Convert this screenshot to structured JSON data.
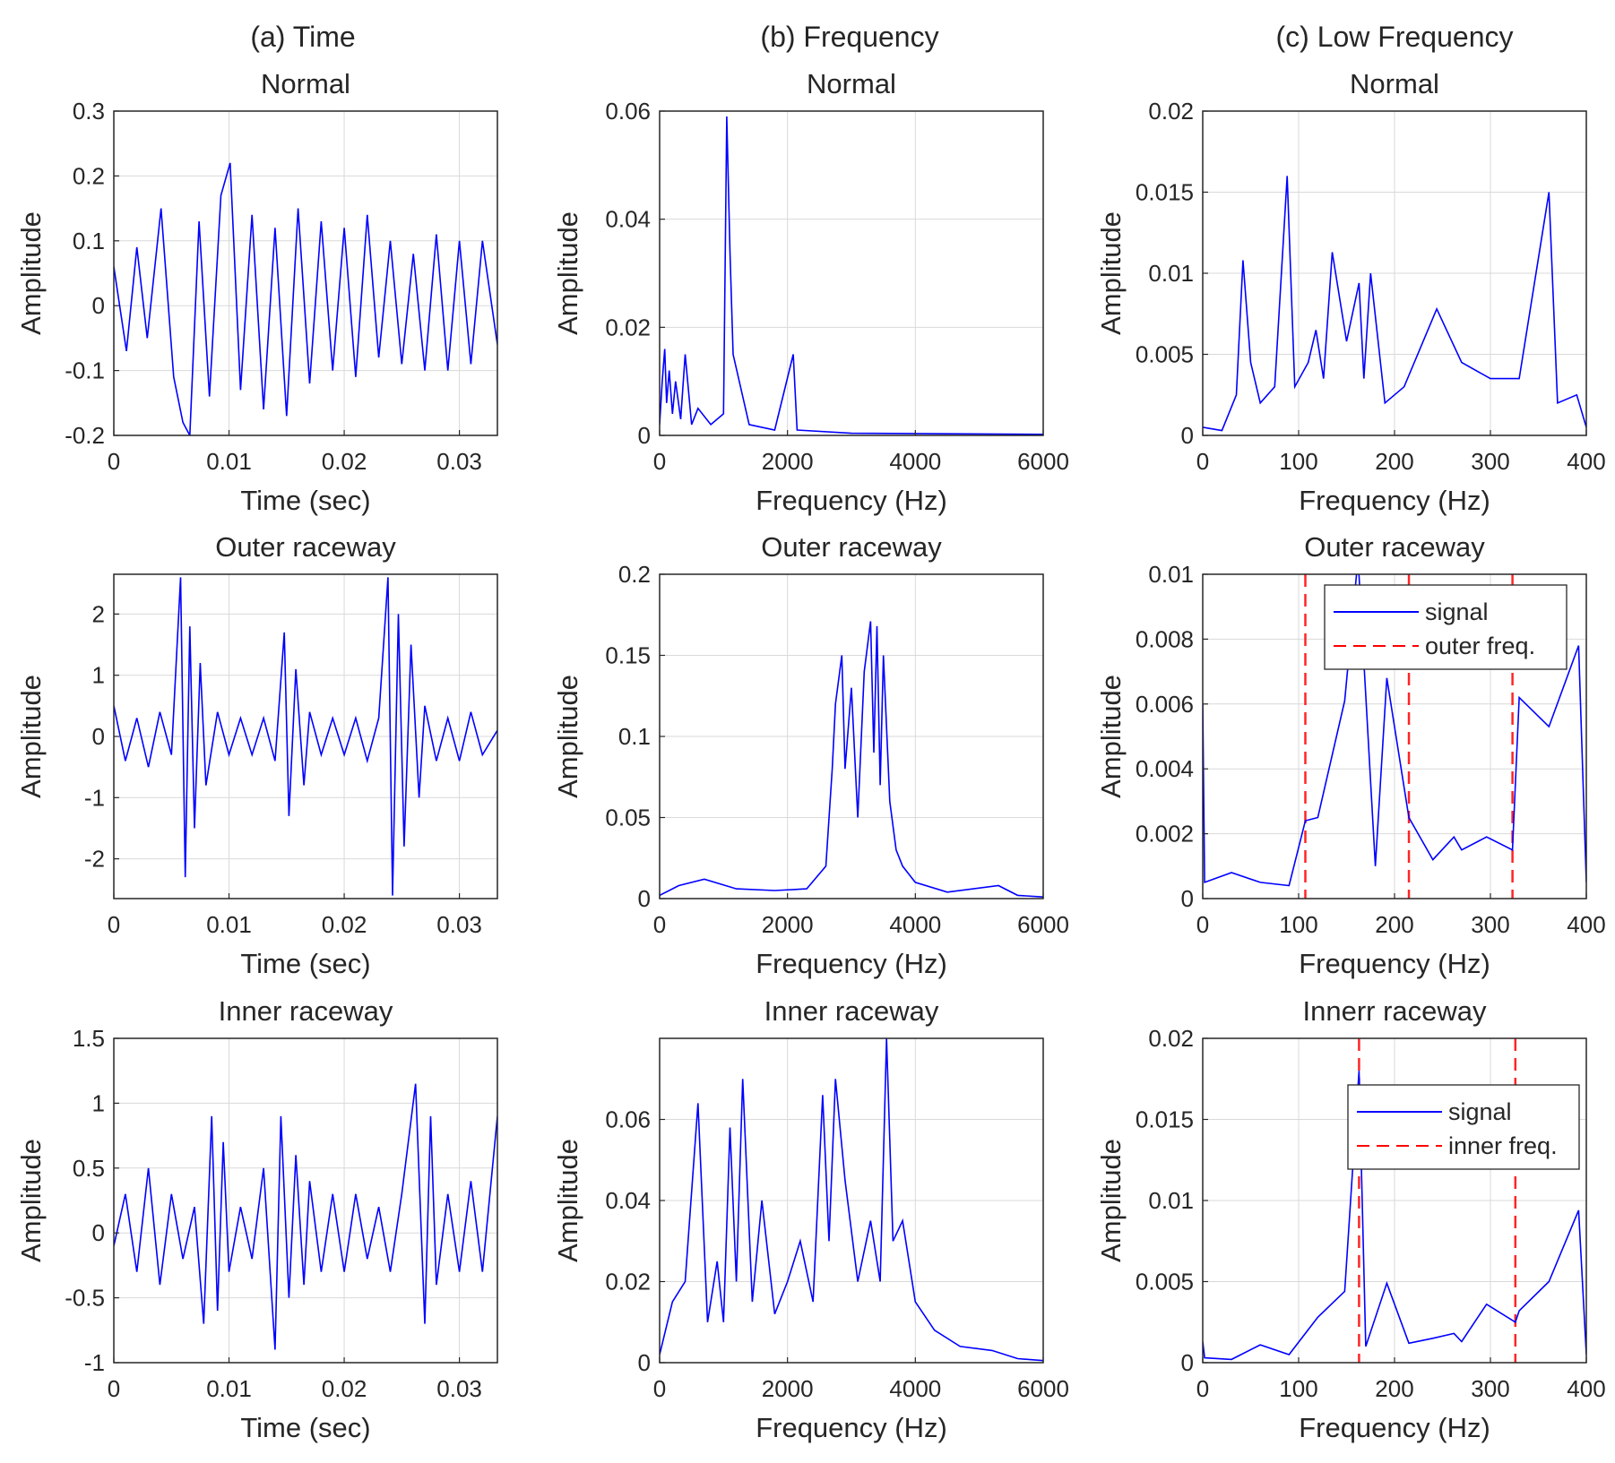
{
  "figure": {
    "column_titles": [
      "(a) Time",
      "(b) Frequency",
      "(c) Low Frequency"
    ]
  },
  "colors": {
    "signal": "#0000ff",
    "marker": "#ff0000",
    "grid": "#d9d9d9",
    "axes": "#262626"
  },
  "chart_data": [
    {
      "id": "time-normal",
      "type": "line",
      "title": "Normal",
      "xlabel": "Time (sec)",
      "ylabel": "Amplitude",
      "xlim": [
        0,
        0.0333
      ],
      "ylim": [
        -0.2,
        0.3
      ],
      "xticks": [
        0,
        0.01,
        0.02,
        0.03
      ],
      "xticklabels": [
        "0",
        "0.01",
        "0.02",
        "0.03"
      ],
      "yticks": [
        -0.2,
        -0.1,
        0,
        0.1,
        0.2,
        0.3
      ],
      "yticklabels": [
        "-0.2",
        "-0.1",
        "0",
        "0.1",
        "0.2",
        "0.3"
      ],
      "grid": true,
      "series": [
        {
          "x": [
            0,
            0.0011,
            0.002,
            0.0029,
            0.0041,
            0.0052,
            0.006,
            0.0066,
            0.0074,
            0.0083,
            0.0093,
            0.0101,
            0.011,
            0.012,
            0.013,
            0.014,
            0.015,
            0.016,
            0.017,
            0.018,
            0.019,
            0.02,
            0.021,
            0.022,
            0.023,
            0.024,
            0.025,
            0.026,
            0.027,
            0.028,
            0.029,
            0.03,
            0.031,
            0.032,
            0.0333
          ],
          "y": [
            0.06,
            -0.07,
            0.09,
            -0.05,
            0.15,
            -0.11,
            -0.18,
            -0.2,
            0.13,
            -0.14,
            0.17,
            0.22,
            -0.13,
            0.14,
            -0.16,
            0.12,
            -0.17,
            0.15,
            -0.12,
            0.13,
            -0.1,
            0.12,
            -0.11,
            0.14,
            -0.08,
            0.1,
            -0.09,
            0.08,
            -0.1,
            0.11,
            -0.1,
            0.1,
            -0.09,
            0.1,
            -0.06
          ]
        }
      ]
    },
    {
      "id": "freq-normal",
      "type": "line",
      "title": "Normal",
      "xlabel": "Frequency (Hz)",
      "ylabel": "Amplitude",
      "xlim": [
        0,
        6000
      ],
      "ylim": [
        0,
        0.06
      ],
      "xticks": [
        0,
        2000,
        4000,
        6000
      ],
      "xticklabels": [
        "0",
        "2000",
        "4000",
        "6000"
      ],
      "yticks": [
        0,
        0.02,
        0.04,
        0.06
      ],
      "yticklabels": [
        "0",
        "0.02",
        "0.04",
        "0.06"
      ],
      "grid": true,
      "series": [
        {
          "x": [
            0,
            40,
            80,
            110,
            150,
            200,
            250,
            330,
            400,
            500,
            600,
            800,
            1000,
            1050,
            1100,
            1150,
            1400,
            1800,
            2090,
            2150,
            3000,
            4500,
            6000
          ],
          "y": [
            0.002,
            0.01,
            0.016,
            0.006,
            0.012,
            0.004,
            0.01,
            0.003,
            0.015,
            0.002,
            0.005,
            0.002,
            0.004,
            0.059,
            0.034,
            0.015,
            0.002,
            0.001,
            0.015,
            0.001,
            0.0004,
            0.0003,
            0.0002
          ]
        }
      ]
    },
    {
      "id": "low-normal",
      "type": "line",
      "title": "Normal",
      "xlabel": "Frequency (Hz)",
      "ylabel": "Amplitude",
      "xlim": [
        0,
        400
      ],
      "ylim": [
        0,
        0.02
      ],
      "xticks": [
        0,
        100,
        200,
        300,
        400
      ],
      "xticklabels": [
        "0",
        "100",
        "200",
        "300",
        "400"
      ],
      "yticks": [
        0,
        0.005,
        0.01,
        0.015,
        0.02
      ],
      "yticklabels": [
        "0",
        "0.005",
        "0.01",
        "0.015",
        "0.02"
      ],
      "grid": true,
      "series": [
        {
          "x": [
            0,
            20,
            35,
            42,
            50,
            60,
            75,
            88,
            96,
            110,
            118,
            126,
            135,
            150,
            163,
            168,
            175,
            190,
            210,
            244,
            270,
            300,
            330,
            361,
            370,
            390,
            400
          ],
          "y": [
            0.0005,
            0.0003,
            0.0025,
            0.0108,
            0.0045,
            0.002,
            0.003,
            0.016,
            0.003,
            0.0045,
            0.0065,
            0.0035,
            0.0113,
            0.0058,
            0.0094,
            0.0035,
            0.01,
            0.002,
            0.003,
            0.0078,
            0.0045,
            0.0035,
            0.0035,
            0.015,
            0.002,
            0.0025,
            0.0005
          ]
        }
      ]
    },
    {
      "id": "time-outer",
      "type": "line",
      "title": "Outer raceway",
      "xlabel": "Time (sec)",
      "ylabel": "Amplitude",
      "xlim": [
        0,
        0.0333
      ],
      "ylim": [
        -2.65,
        2.65
      ],
      "xticks": [
        0,
        0.01,
        0.02,
        0.03
      ],
      "xticklabels": [
        "0",
        "0.01",
        "0.02",
        "0.03"
      ],
      "yticks": [
        -2,
        -1,
        0,
        1,
        2
      ],
      "yticklabels": [
        "-2",
        "-1",
        "0",
        "1",
        "2"
      ],
      "grid": true,
      "series": [
        {
          "x": [
            0,
            0.001,
            0.002,
            0.003,
            0.004,
            0.005,
            0.0058,
            0.0062,
            0.0066,
            0.007,
            0.0075,
            0.008,
            0.009,
            0.01,
            0.011,
            0.012,
            0.013,
            0.014,
            0.0148,
            0.0152,
            0.0158,
            0.0165,
            0.017,
            0.018,
            0.019,
            0.02,
            0.021,
            0.022,
            0.023,
            0.0238,
            0.0242,
            0.0247,
            0.0252,
            0.0258,
            0.0265,
            0.027,
            0.028,
            0.029,
            0.03,
            0.031,
            0.032,
            0.0333
          ],
          "y": [
            0.5,
            -0.4,
            0.3,
            -0.5,
            0.4,
            -0.3,
            2.6,
            -2.3,
            1.8,
            -1.5,
            1.2,
            -0.8,
            0.4,
            -0.3,
            0.3,
            -0.3,
            0.3,
            -0.4,
            1.7,
            -1.3,
            1.1,
            -0.8,
            0.4,
            -0.3,
            0.3,
            -0.3,
            0.3,
            -0.4,
            0.3,
            2.6,
            -2.6,
            2.0,
            -1.8,
            1.5,
            -1.0,
            0.5,
            -0.4,
            0.3,
            -0.4,
            0.4,
            -0.3,
            0.1
          ]
        }
      ]
    },
    {
      "id": "freq-outer",
      "type": "line",
      "title": "Outer raceway",
      "xlabel": "Frequency (Hz)",
      "ylabel": "Amplitude",
      "xlim": [
        0,
        6000
      ],
      "ylim": [
        0,
        0.2
      ],
      "xticks": [
        0,
        2000,
        4000,
        6000
      ],
      "xticklabels": [
        "0",
        "2000",
        "4000",
        "6000"
      ],
      "yticks": [
        0,
        0.05,
        0.1,
        0.15,
        0.2
      ],
      "yticklabels": [
        "0",
        "0.05",
        "0.1",
        "0.15",
        "0.2"
      ],
      "grid": true,
      "series": [
        {
          "x": [
            0,
            300,
            700,
            1200,
            1800,
            2300,
            2600,
            2700,
            2750,
            2850,
            2900,
            3000,
            3100,
            3200,
            3300,
            3350,
            3400,
            3450,
            3500,
            3600,
            3700,
            3800,
            4000,
            4500,
            5300,
            5600,
            6000
          ],
          "y": [
            0.002,
            0.008,
            0.012,
            0.006,
            0.005,
            0.006,
            0.02,
            0.08,
            0.12,
            0.15,
            0.08,
            0.13,
            0.05,
            0.14,
            0.171,
            0.09,
            0.168,
            0.07,
            0.15,
            0.06,
            0.03,
            0.02,
            0.01,
            0.004,
            0.008,
            0.002,
            0.001
          ]
        }
      ]
    },
    {
      "id": "low-outer",
      "type": "line",
      "title": "Outer raceway",
      "xlabel": "Frequency (Hz)",
      "ylabel": "Amplitude",
      "xlim": [
        0,
        400
      ],
      "ylim": [
        0,
        0.01
      ],
      "xticks": [
        0,
        100,
        200,
        300,
        400
      ],
      "xticklabels": [
        "0",
        "100",
        "200",
        "300",
        "400"
      ],
      "yticks": [
        0,
        0.002,
        0.004,
        0.006,
        0.008,
        0.01
      ],
      "yticklabels": [
        "0",
        "0.002",
        "0.004",
        "0.006",
        "0.008",
        "0.01"
      ],
      "grid": true,
      "legend": {
        "location": "top-right",
        "entries": [
          "signal",
          "outer freq."
        ]
      },
      "vlines": [
        107,
        215,
        323
      ],
      "series": [
        {
          "x": [
            0,
            2,
            30,
            60,
            90,
            107,
            120,
            148,
            162,
            180,
            192,
            215,
            240,
            262,
            270,
            296,
            323,
            330,
            361,
            392,
            400
          ],
          "y": [
            0.006,
            0.0005,
            0.0008,
            0.0005,
            0.0004,
            0.0024,
            0.0025,
            0.0061,
            0.0105,
            0.001,
            0.0068,
            0.0025,
            0.0012,
            0.0019,
            0.0015,
            0.0019,
            0.0015,
            0.0062,
            0.0053,
            0.0078,
            0.0005
          ]
        }
      ]
    },
    {
      "id": "time-inner",
      "type": "line",
      "title": "Inner raceway",
      "xlabel": "Time (sec)",
      "ylabel": "Amplitude",
      "xlim": [
        0,
        0.0333
      ],
      "ylim": [
        -1,
        1.5
      ],
      "xticks": [
        0,
        0.01,
        0.02,
        0.03
      ],
      "xticklabels": [
        "0",
        "0.01",
        "0.02",
        "0.03"
      ],
      "yticks": [
        -1,
        -0.5,
        0,
        0.5,
        1,
        1.5
      ],
      "yticklabels": [
        "-1",
        "-0.5",
        "0",
        "0.5",
        "1",
        "1.5"
      ],
      "grid": true,
      "series": [
        {
          "x": [
            0,
            0.001,
            0.002,
            0.003,
            0.004,
            0.005,
            0.006,
            0.007,
            0.0078,
            0.0085,
            0.009,
            0.0095,
            0.01,
            0.011,
            0.012,
            0.013,
            0.014,
            0.0145,
            0.0152,
            0.0158,
            0.0165,
            0.017,
            0.018,
            0.019,
            0.02,
            0.021,
            0.022,
            0.023,
            0.024,
            0.025,
            0.0262,
            0.027,
            0.0275,
            0.028,
            0.029,
            0.03,
            0.031,
            0.032,
            0.0333
          ],
          "y": [
            -0.1,
            0.3,
            -0.3,
            0.5,
            -0.4,
            0.3,
            -0.2,
            0.2,
            -0.7,
            0.9,
            -0.6,
            0.7,
            -0.3,
            0.2,
            -0.2,
            0.5,
            -0.9,
            0.9,
            -0.5,
            0.6,
            -0.4,
            0.4,
            -0.3,
            0.3,
            -0.3,
            0.3,
            -0.2,
            0.2,
            -0.3,
            0.3,
            1.15,
            -0.7,
            0.9,
            -0.4,
            0.3,
            -0.3,
            0.4,
            -0.3,
            0.9
          ]
        }
      ]
    },
    {
      "id": "freq-inner",
      "type": "line",
      "title": "Inner raceway",
      "xlabel": "Frequency (Hz)",
      "ylabel": "Amplitude",
      "xlim": [
        0,
        6000
      ],
      "ylim": [
        0,
        0.08
      ],
      "xticks": [
        0,
        2000,
        4000,
        6000
      ],
      "xticklabels": [
        "0",
        "2000",
        "4000",
        "6000"
      ],
      "yticks": [
        0,
        0.02,
        0.04,
        0.06
      ],
      "yticklabels": [
        "0",
        "0.02",
        "0.04",
        "0.06"
      ],
      "grid": true,
      "series": [
        {
          "x": [
            0,
            200,
            400,
            600,
            750,
            900,
            1000,
            1100,
            1200,
            1300,
            1450,
            1600,
            1800,
            2000,
            2200,
            2400,
            2550,
            2650,
            2750,
            2900,
            3100,
            3300,
            3450,
            3550,
            3650,
            3800,
            4000,
            4300,
            4700,
            5200,
            5600,
            6000
          ],
          "y": [
            0.002,
            0.015,
            0.02,
            0.064,
            0.01,
            0.025,
            0.01,
            0.058,
            0.02,
            0.07,
            0.015,
            0.04,
            0.012,
            0.02,
            0.03,
            0.015,
            0.066,
            0.03,
            0.07,
            0.045,
            0.02,
            0.035,
            0.02,
            0.08,
            0.03,
            0.035,
            0.015,
            0.008,
            0.004,
            0.003,
            0.001,
            0.0005
          ]
        }
      ]
    },
    {
      "id": "low-inner",
      "type": "line",
      "title": "Innerr raceway",
      "xlabel": "Frequency (Hz)",
      "ylabel": "Amplitude",
      "xlim": [
        0,
        400
      ],
      "ylim": [
        0,
        0.02
      ],
      "xticks": [
        0,
        100,
        200,
        300,
        400
      ],
      "xticklabels": [
        "0",
        "100",
        "200",
        "300",
        "400"
      ],
      "yticks": [
        0,
        0.005,
        0.01,
        0.015,
        0.02
      ],
      "yticklabels": [
        "0",
        "0.005",
        "0.01",
        "0.015",
        "0.02"
      ],
      "grid": true,
      "legend": {
        "location": "top-right",
        "entries": [
          "signal",
          "inner freq."
        ]
      },
      "vlines": [
        163,
        326
      ],
      "series": [
        {
          "x": [
            0,
            2,
            30,
            60,
            90,
            120,
            148,
            163,
            170,
            192,
            215,
            240,
            262,
            270,
            296,
            326,
            330,
            361,
            392,
            400
          ],
          "y": [
            0.0013,
            0.0003,
            0.0002,
            0.0011,
            0.0005,
            0.0028,
            0.0044,
            0.018,
            0.001,
            0.0049,
            0.0012,
            0.0015,
            0.0018,
            0.0013,
            0.0036,
            0.0025,
            0.0032,
            0.005,
            0.0094,
            0.0005
          ]
        }
      ]
    }
  ]
}
